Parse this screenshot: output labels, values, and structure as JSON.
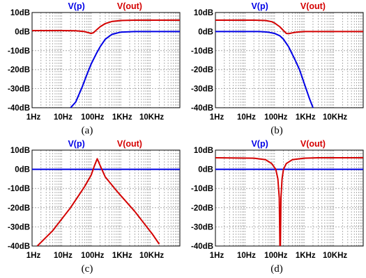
{
  "chart_data": [
    {
      "type": "line",
      "caption": "(a)",
      "x_scale": "log",
      "xlim": [
        1,
        100000
      ],
      "x_ticks": [
        "1Hz",
        "10Hz",
        "100Hz",
        "1KHz",
        "10KHz"
      ],
      "y_ticks": [
        "10dB",
        "0dB",
        "-10dB",
        "-20dB",
        "-30dB",
        "-40dB"
      ],
      "ylim": [
        -40,
        10
      ],
      "grid": true,
      "series": [
        {
          "name": "V(p)",
          "color": "#0000e6",
          "x": [
            20,
            30,
            50,
            70,
            100,
            150,
            200,
            300,
            500,
            1000,
            3000,
            100000
          ],
          "y": [
            -40,
            -37,
            -29,
            -23,
            -17,
            -11.5,
            -8,
            -4,
            -1.5,
            -0.3,
            0,
            0
          ]
        },
        {
          "name": "V(out)",
          "color": "#d40000",
          "x": [
            1,
            10,
            30,
            60,
            80,
            100,
            120,
            150,
            200,
            300,
            500,
            1000,
            3000,
            100000
          ],
          "y": [
            0.5,
            0.5,
            0.4,
            0,
            -0.6,
            -1,
            -0.6,
            0.8,
            2.5,
            4.2,
            5.3,
            5.8,
            6,
            6
          ]
        }
      ]
    },
    {
      "type": "line",
      "caption": "(b)",
      "x_scale": "log",
      "xlim": [
        1,
        100000
      ],
      "x_ticks": [
        "1Hz",
        "10Hz",
        "100Hz",
        "1KHz",
        "10KHz"
      ],
      "y_ticks": [
        "10dB",
        "0dB",
        "-10dB",
        "-20dB",
        "-30dB",
        "-40dB"
      ],
      "ylim": [
        -40,
        10
      ],
      "grid": true,
      "series": [
        {
          "name": "V(p)",
          "color": "#0000e6",
          "x": [
            1,
            30,
            60,
            100,
            150,
            200,
            300,
            500,
            700,
            1000,
            1500,
            2000
          ],
          "y": [
            0,
            0,
            -0.3,
            -1,
            -2.2,
            -4,
            -8,
            -15,
            -20,
            -27,
            -35,
            -40
          ]
        },
        {
          "name": "V(out)",
          "color": "#d40000",
          "x": [
            1,
            20,
            50,
            80,
            100,
            150,
            200,
            250,
            300,
            400,
            500,
            700,
            1000,
            100000
          ],
          "y": [
            6,
            6,
            5.8,
            5.2,
            4.5,
            2.5,
            0.5,
            -1,
            -1.1,
            -0.7,
            -0.4,
            -0.2,
            0,
            0
          ]
        }
      ]
    },
    {
      "type": "line",
      "caption": "(c)",
      "x_scale": "log",
      "xlim": [
        1,
        100000
      ],
      "x_ticks": [
        "1Hz",
        "10Hz",
        "100Hz",
        "1KHz",
        "10KHz"
      ],
      "y_ticks": [
        "10dB",
        "0dB",
        "-10dB",
        "-20dB",
        "-30dB",
        "-40dB"
      ],
      "ylim": [
        -40,
        10
      ],
      "grid": true,
      "series": [
        {
          "name": "V(p)",
          "color": "#0000e6",
          "x": [
            1,
            100000
          ],
          "y": [
            0,
            0
          ]
        },
        {
          "name": "V(out)",
          "color": "#d40000",
          "x": [
            1.5,
            5,
            20,
            60,
            100,
            130,
            160,
            200,
            300,
            800,
            3000,
            12000,
            20000
          ],
          "y": [
            -40,
            -32,
            -20,
            -9,
            -3,
            2,
            5.5,
            2,
            -4,
            -12,
            -22,
            -34,
            -39
          ]
        }
      ]
    },
    {
      "type": "line",
      "caption": "(d)",
      "x_scale": "log",
      "xlim": [
        1,
        100000
      ],
      "x_ticks": [
        "1Hz",
        "10Hz",
        "100Hz",
        "1KHz",
        "10KHz"
      ],
      "y_ticks": [
        "10dB",
        "0dB",
        "-10dB",
        "-20dB",
        "-30dB",
        "-40dB"
      ],
      "ylim": [
        -40,
        10
      ],
      "grid": true,
      "series": [
        {
          "name": "V(p)",
          "color": "#0000e6",
          "x": [
            1,
            100000
          ],
          "y": [
            0,
            0
          ]
        },
        {
          "name": "V(out)",
          "color": "#d40000",
          "x": [
            1,
            20,
            50,
            80,
            110,
            130,
            145,
            152,
            158,
            165,
            180,
            200,
            250,
            400,
            1000,
            3000,
            100000
          ],
          "y": [
            6,
            5.8,
            5,
            3,
            0,
            -5,
            -15,
            -40,
            -40,
            -15,
            -5,
            0,
            3,
            5,
            5.8,
            6,
            6
          ]
        }
      ]
    }
  ]
}
